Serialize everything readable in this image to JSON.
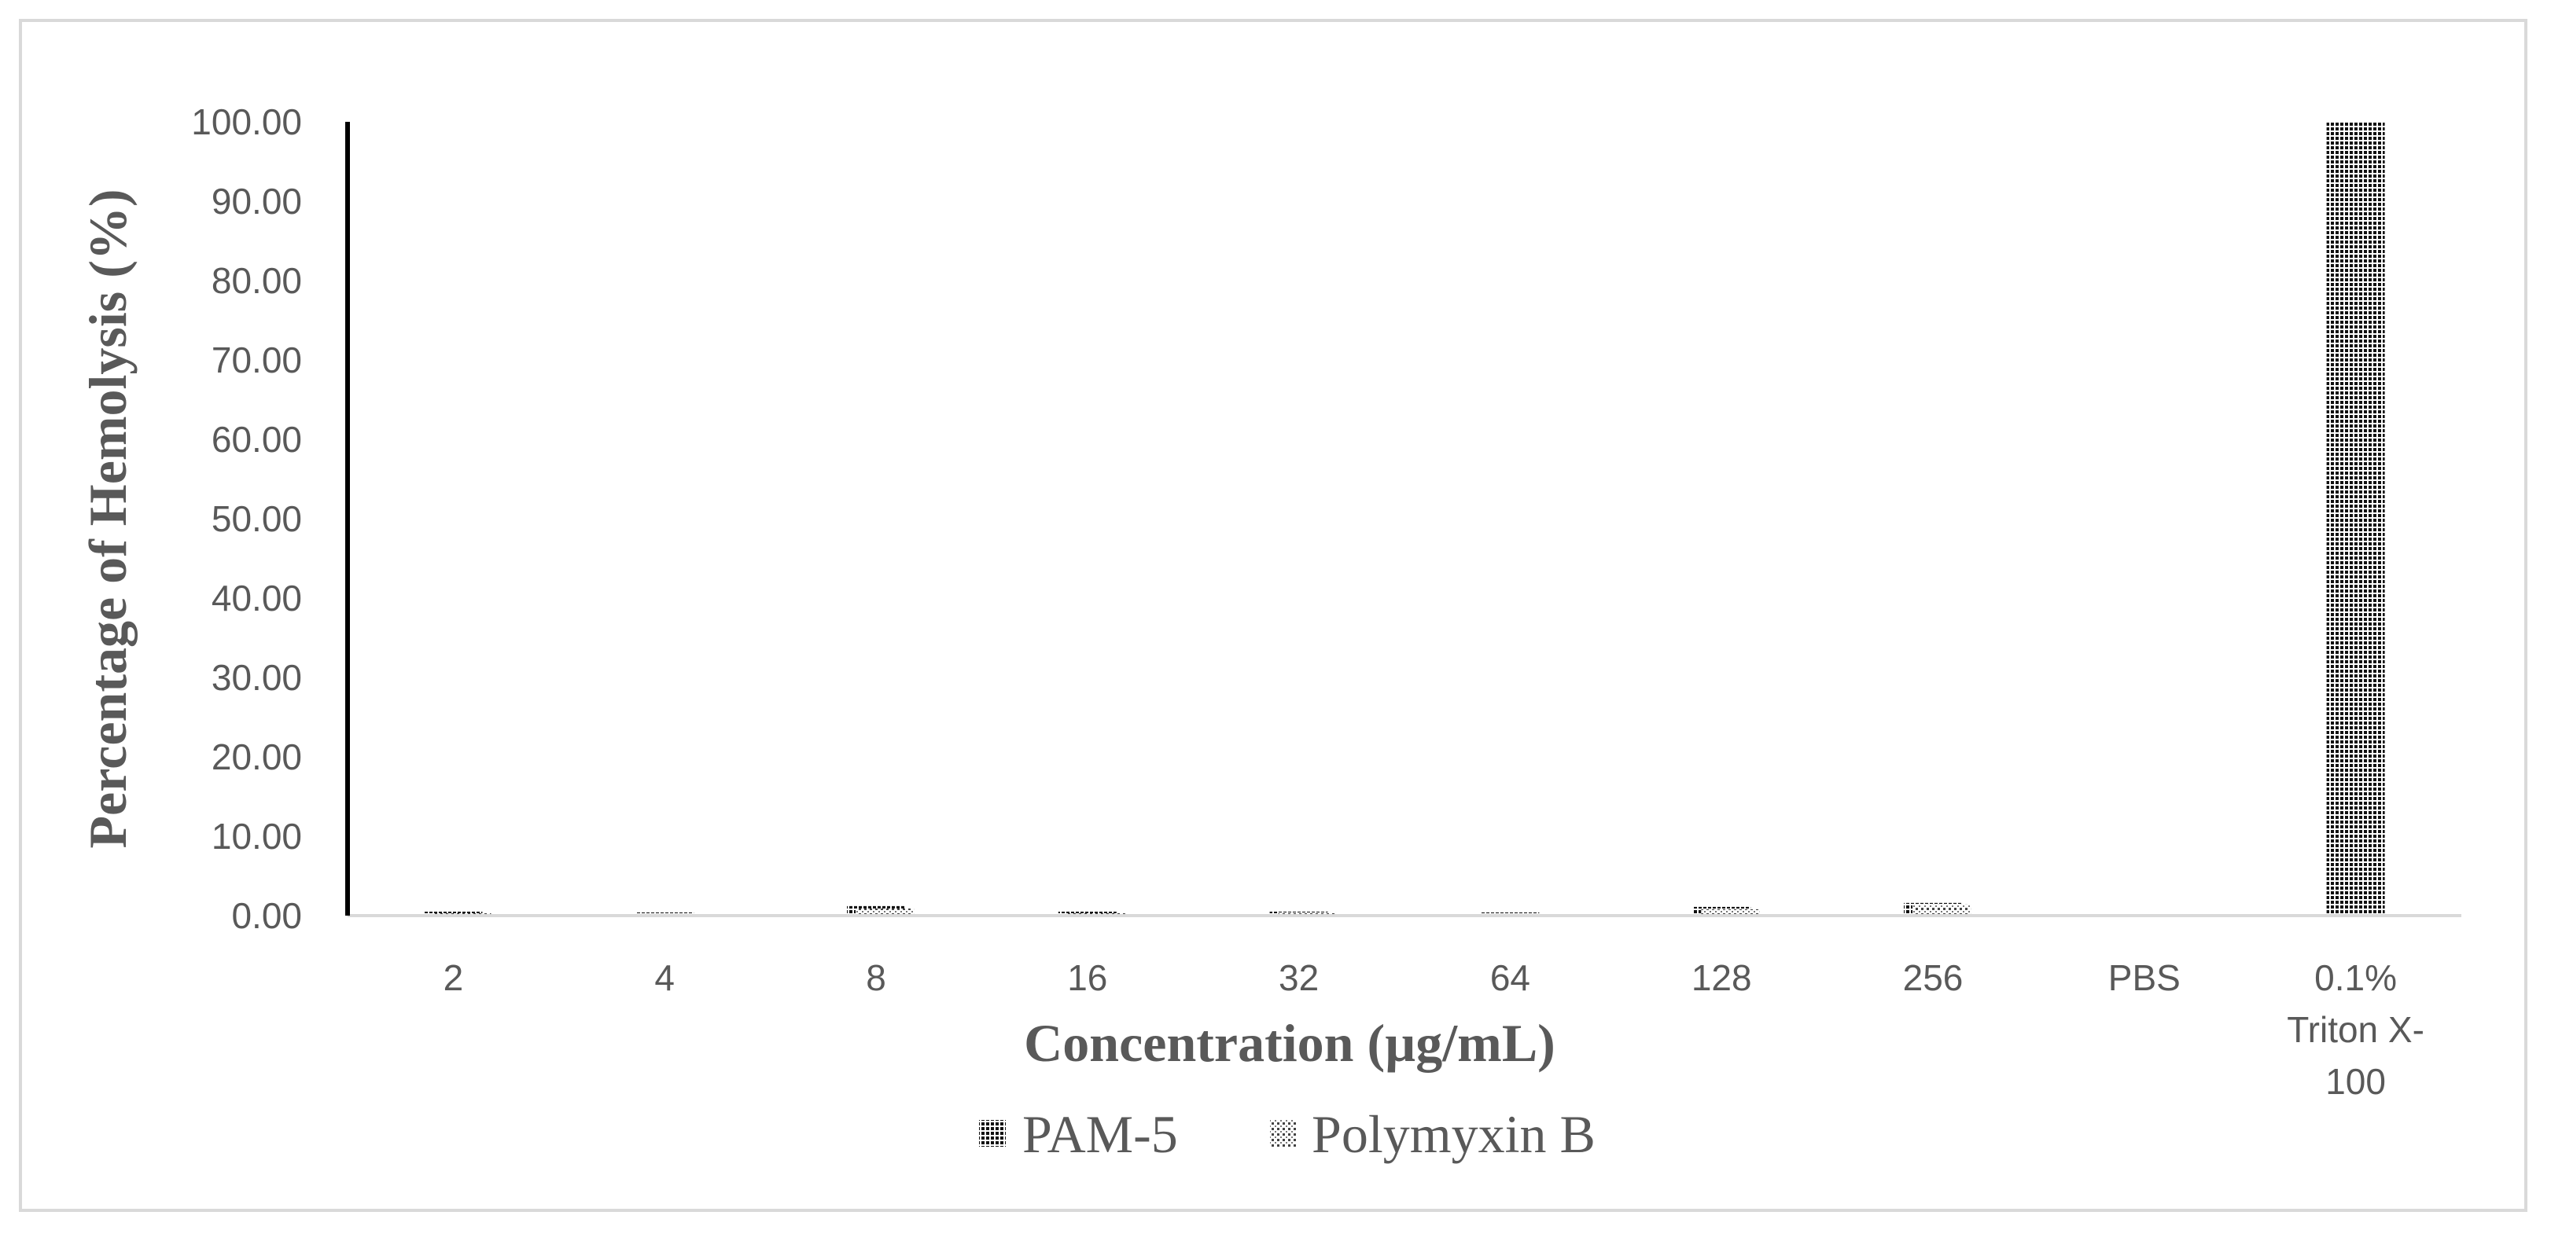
{
  "chart_data": {
    "type": "bar",
    "title": "",
    "xlabel": "Concentration (µg/mL)",
    "ylabel": "Percentage of Hemolysis (%)",
    "ylim": [
      0,
      100
    ],
    "yticks": [
      "0.00",
      "10.00",
      "20.00",
      "30.00",
      "40.00",
      "50.00",
      "60.00",
      "70.00",
      "80.00",
      "90.00",
      "100.00"
    ],
    "categories": [
      [
        "2"
      ],
      [
        "4"
      ],
      [
        "8"
      ],
      [
        "16"
      ],
      [
        "32"
      ],
      [
        "64"
      ],
      [
        "128"
      ],
      [
        "256"
      ],
      [
        "PBS"
      ],
      [
        "0.1%",
        "Triton X-",
        "100"
      ]
    ],
    "series": [
      {
        "name": "PAM-5",
        "pattern": "dense",
        "values": [
          0.5,
          0.4,
          1.2,
          0.5,
          0.5,
          0.4,
          1.1,
          1.6,
          0,
          100
        ]
      },
      {
        "name": "Polymyxin B",
        "pattern": "sparse",
        "values": [
          0.3,
          null,
          0.9,
          0.3,
          0.4,
          null,
          0.8,
          1.4,
          0,
          null
        ]
      }
    ],
    "legend_position": "bottom",
    "grid": false,
    "colors": {
      "text": "#595959",
      "axis": "#000000",
      "baseline": "#d9d9d9",
      "bar_fill": "#1a1a1a"
    }
  }
}
